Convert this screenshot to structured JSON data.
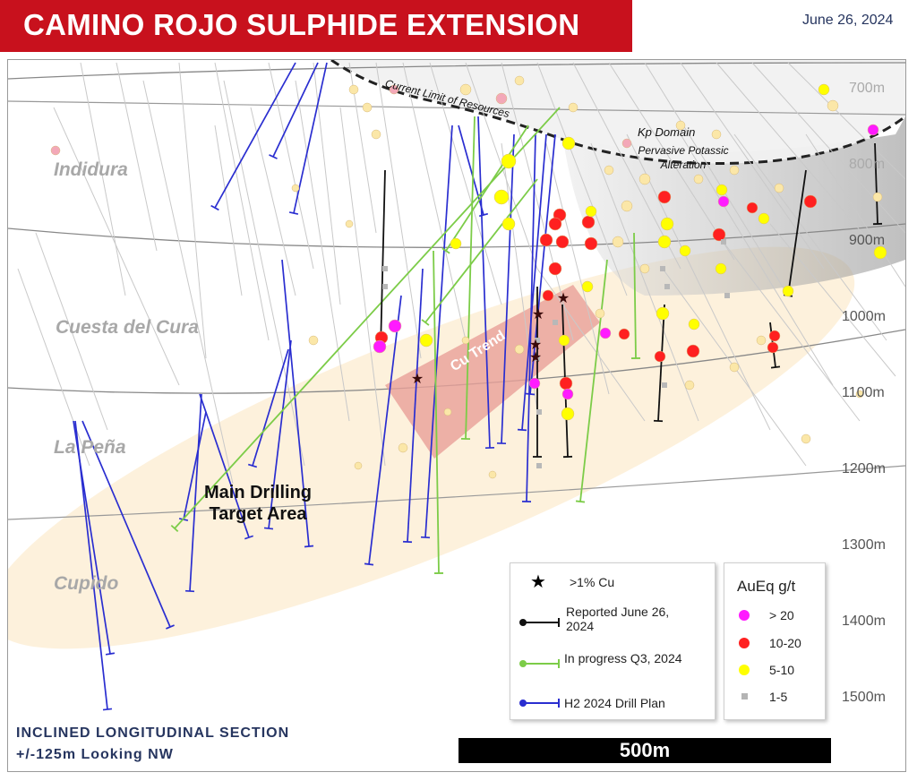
{
  "header": {
    "title": "CAMINO ROJO SULPHIDE EXTENSION",
    "date": "June 26, 2024"
  },
  "map": {
    "formations": [
      "Indidura",
      "Cuesta del Cura",
      "La Peña",
      "Cupido"
    ],
    "depth_labels": [
      "700m",
      "800m",
      "900m",
      "1000m",
      "1100m",
      "1200m",
      "1300m",
      "1400m",
      "1500m"
    ],
    "annotations": {
      "current_limit": "Current Limit of Resources",
      "kp_domain_title": "Kp Domain",
      "kp_domain_sub1": "Pervasive Potassic",
      "kp_domain_sub2": "Alteration",
      "cu_trend": "Cu Trend",
      "target_line1": "Main Drilling",
      "target_line2": "Target Area"
    },
    "caption_line1": "INCLINED LONGITUDINAL SECTION",
    "caption_line2": "+/-125m Looking NW",
    "scale_label": "500m"
  },
  "legend_holes": {
    "items": [
      {
        "symbol": "star",
        "label": ">1% Cu"
      },
      {
        "symbol": "black-line",
        "label": "Reported June 26, 2024",
        "color": "#111111"
      },
      {
        "symbol": "green-line",
        "label": "In progress Q3, 2024",
        "color": "#7ccc48"
      },
      {
        "symbol": "blue-line",
        "label": "H2 2024 Drill Plan",
        "color": "#2a2ed0"
      }
    ]
  },
  "legend_grade": {
    "title": "AuEq g/t",
    "items": [
      {
        "label": "> 20",
        "color": "#ff1bff"
      },
      {
        "label": "10-20",
        "color": "#ff2020"
      },
      {
        "label": "5-10",
        "color": "#ffff00"
      },
      {
        "label": "1-5",
        "color": "#b4b4b4"
      }
    ]
  }
}
